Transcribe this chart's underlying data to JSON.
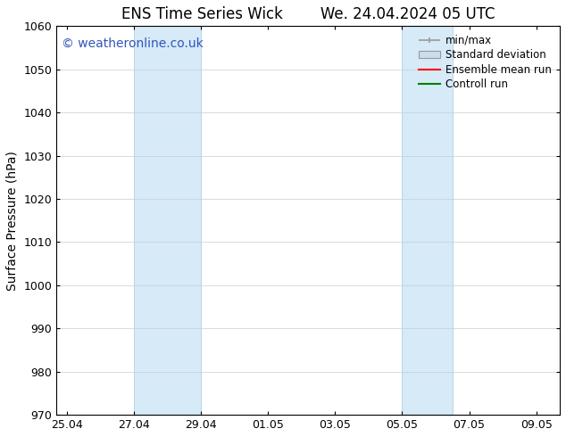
{
  "title": "ENS Time Series Wick        We. 24.04.2024 05 UTC",
  "ylabel": "Surface Pressure (hPa)",
  "ylim": [
    970,
    1060
  ],
  "yticks": [
    970,
    980,
    990,
    1000,
    1010,
    1020,
    1030,
    1040,
    1050,
    1060
  ],
  "xtick_labels": [
    "25.04",
    "27.04",
    "29.04",
    "01.05",
    "03.05",
    "05.05",
    "07.05",
    "09.05"
  ],
  "xtick_positions": [
    0,
    2,
    4,
    6,
    8,
    10,
    12,
    14
  ],
  "xlim": [
    -0.3,
    14.7
  ],
  "shaded_bands": [
    {
      "xmin": 2.0,
      "xmax": 4.0
    },
    {
      "xmin": 10.0,
      "xmax": 11.5
    }
  ],
  "shaded_color": "#d6eaf8",
  "shaded_edge_color": "#aac8e8",
  "watermark_text": "© weatheronline.co.uk",
  "watermark_color": "#3355bb",
  "legend_labels": [
    "min/max",
    "Standard deviation",
    "Ensemble mean run",
    "Controll run"
  ],
  "legend_colors": [
    "#999999",
    "#ccddee",
    "red",
    "green"
  ],
  "bg_color": "#ffffff",
  "spine_color": "#000000",
  "grid_color": "#cccccc",
  "title_fontsize": 12,
  "ylabel_fontsize": 10,
  "tick_fontsize": 9,
  "legend_fontsize": 8.5,
  "watermark_fontsize": 10
}
